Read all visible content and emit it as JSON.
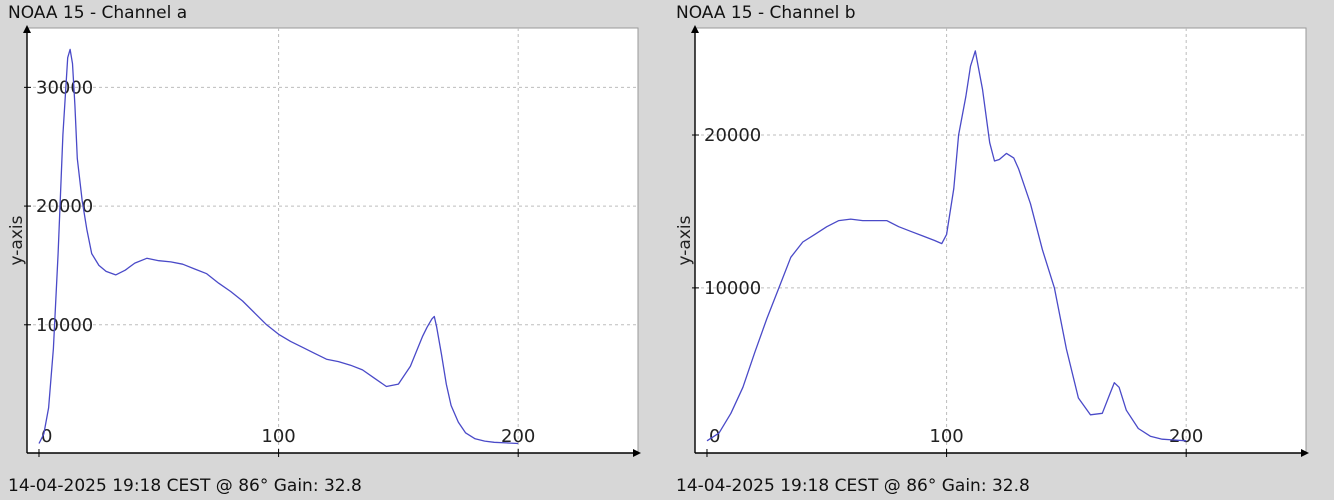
{
  "chart_data": [
    {
      "type": "line",
      "title": "NOAA 15 - Channel a",
      "footer": "14-04-2025 19:18 CEST @ 86° Gain: 32.8",
      "ylabel": "y-axis",
      "xlabel": "",
      "xlim": [
        -5,
        250
      ],
      "ylim": [
        -800,
        35000
      ],
      "x_ticks": [
        0,
        100,
        200
      ],
      "y_ticks": [
        10000,
        20000,
        30000
      ],
      "grid": true,
      "line_color": "#4a4ac8",
      "series": [
        {
          "x": [
            0,
            2,
            4,
            6,
            8,
            10,
            12,
            13,
            14,
            15,
            16,
            18,
            20,
            22,
            25,
            28,
            32,
            36,
            40,
            45,
            50,
            55,
            60,
            65,
            70,
            75,
            80,
            85,
            90,
            95,
            100,
            105,
            110,
            115,
            120,
            125,
            130,
            135,
            140,
            145,
            150,
            155,
            158,
            160,
            162,
            164,
            165,
            166,
            168,
            170,
            172,
            175,
            178,
            182,
            186,
            190,
            195,
            200
          ],
          "values": [
            0,
            800,
            3000,
            8000,
            16000,
            26000,
            32500,
            33200,
            32000,
            28500,
            24000,
            20500,
            18000,
            16000,
            15000,
            14500,
            14200,
            14600,
            15200,
            15600,
            15400,
            15300,
            15100,
            14700,
            14300,
            13500,
            12800,
            12000,
            11000,
            10000,
            9200,
            8600,
            8100,
            7600,
            7100,
            6900,
            6600,
            6200,
            5500,
            4800,
            5000,
            6500,
            8000,
            9000,
            9800,
            10500,
            10700,
            9800,
            7500,
            5000,
            3200,
            1800,
            900,
            400,
            200,
            100,
            50,
            0
          ]
        }
      ]
    },
    {
      "type": "line",
      "title": "NOAA 15 - Channel b",
      "footer": "14-04-2025 19:18 CEST @ 86° Gain: 32.8",
      "ylabel": "y-axis",
      "xlabel": "",
      "xlim": [
        -5,
        250
      ],
      "ylim": [
        -800,
        27000
      ],
      "x_ticks": [
        0,
        100,
        200
      ],
      "y_ticks": [
        10000,
        20000
      ],
      "grid": true,
      "line_color": "#4a4ac8",
      "series": [
        {
          "x": [
            0,
            5,
            10,
            15,
            20,
            25,
            30,
            35,
            40,
            45,
            50,
            55,
            60,
            65,
            70,
            75,
            80,
            85,
            90,
            95,
            98,
            100,
            103,
            105,
            108,
            110,
            112,
            115,
            118,
            120,
            122,
            125,
            128,
            130,
            135,
            140,
            145,
            150,
            155,
            160,
            165,
            168,
            170,
            172,
            175,
            180,
            185,
            190,
            195,
            200
          ],
          "values": [
            0,
            500,
            1800,
            3500,
            5800,
            8000,
            10000,
            12000,
            13000,
            13500,
            14000,
            14400,
            14500,
            14400,
            14400,
            14400,
            14000,
            13700,
            13400,
            13100,
            12900,
            13500,
            16500,
            20000,
            22500,
            24500,
            25500,
            23000,
            19500,
            18300,
            18400,
            18800,
            18500,
            17800,
            15500,
            12500,
            10000,
            6000,
            2800,
            1700,
            1800,
            3000,
            3800,
            3500,
            2000,
            800,
            300,
            100,
            50,
            0
          ]
        }
      ]
    }
  ]
}
